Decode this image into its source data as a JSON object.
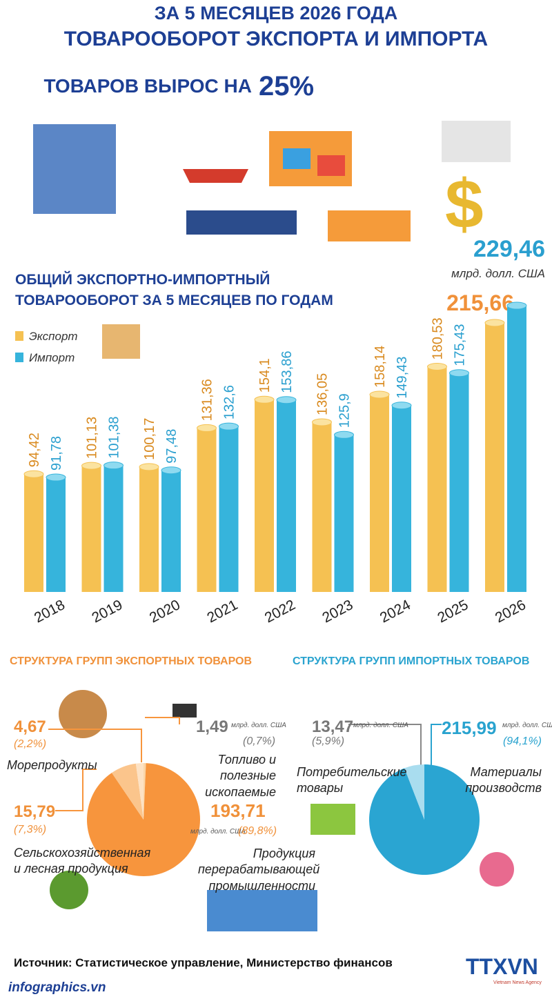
{
  "header": {
    "line1": "ЗА 5 МЕСЯЦЕВ 2026 ГОДА",
    "line2": "ТОВАРООБОРОТ ЭКСПОРТА И ИМПОРТА",
    "line3": "ТОВАРОВ ВЫРОС НА",
    "growth": "25%"
  },
  "chart_data": [
    {
      "type": "bar",
      "title_lines": [
        "ОБЩИЙ ЭКСПОРТНО-ИМПОРТНЫЙ",
        "ТОВАРООБОРОТ ЗА 5 МЕСЯЦЕВ ПО ГОДАМ"
      ],
      "unit": "млрд. долл. США",
      "categories": [
        "2018",
        "2019",
        "2020",
        "2021",
        "2022",
        "2023",
        "2024",
        "2025",
        "2026"
      ],
      "series": [
        {
          "name": "Экспорт",
          "color": "#f5c152",
          "values": [
            94.42,
            101.13,
            100.17,
            131.36,
            154.1,
            136.05,
            158.14,
            180.53,
            215.66
          ],
          "value_labels": [
            "94,42",
            "101,13",
            "100,17",
            "131,36",
            "154,1",
            "136,05",
            "158,14",
            "180,53",
            "215,66"
          ]
        },
        {
          "name": "Импорт",
          "color": "#36b4dc",
          "values": [
            91.78,
            101.38,
            97.48,
            132.6,
            153.86,
            125.9,
            149.43,
            175.43,
            229.46
          ],
          "value_labels": [
            "91,78",
            "101,38",
            "97,48",
            "132,6",
            "153,86",
            "125,9",
            "149,43",
            "175,43",
            "229,46"
          ]
        }
      ]
    },
    {
      "type": "pie",
      "title": "СТРУКТУРА ГРУПП ЭКСПОРТНЫХ ТОВАРОВ",
      "unit": "млрд. долл. США",
      "categories": [
        "Топливо и полезные ископаемые",
        "Продукция перерабатывающей промышленности",
        "Сельскохозяйственная и лесная продукция",
        "Морепродукты"
      ],
      "values": [
        1.49,
        193.71,
        15.79,
        4.67
      ],
      "value_labels": [
        "1,49",
        "193,71",
        "15,79",
        "4,67"
      ],
      "shares": [
        0.7,
        89.8,
        7.3,
        2.2
      ],
      "share_labels": [
        "(0,7%)",
        "(89,8%)",
        "(7,3%)",
        "(2,2%)"
      ],
      "colors": [
        "#fbd6a8",
        "#f7953d",
        "#fbc58c",
        "#fde2c4"
      ]
    },
    {
      "type": "pie",
      "title": "СТРУКТУРА ГРУПП ИМПОРТНЫХ ТОВАРОВ",
      "unit": "млрд. долл. США",
      "categories": [
        "Материалы производств",
        "Потребительские товары"
      ],
      "values": [
        215.99,
        13.47
      ],
      "value_labels": [
        "215,99",
        "13,47"
      ],
      "shares": [
        94.1,
        5.9
      ],
      "share_labels": [
        "(94,1%)",
        "(5,9%)"
      ],
      "colors": [
        "#2aa5d2",
        "#a9ddef"
      ]
    }
  ],
  "footer": {
    "source": "Источник: Статистическое управление, Министерство финансов",
    "site": "infographics.vn",
    "logo": "TTXVN",
    "agency": "Vietnam News Agency"
  }
}
